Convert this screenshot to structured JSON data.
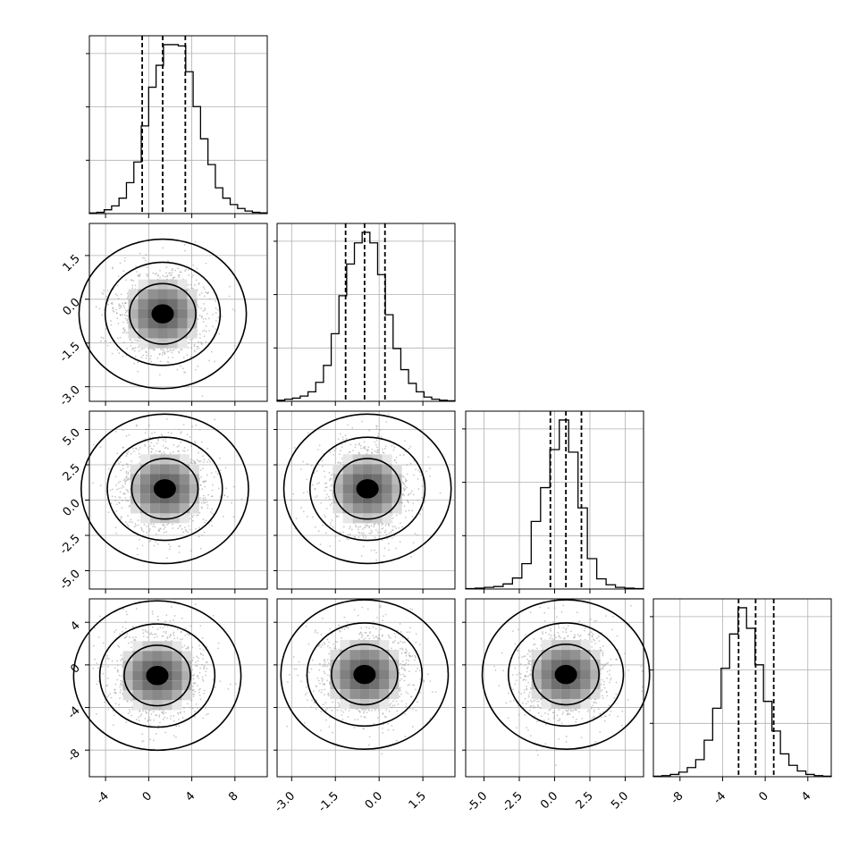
{
  "chart_data": {
    "type": "corner",
    "parameters": [
      {
        "range": [
          -5.5,
          11.0
        ],
        "ticks": [
          "-4",
          "0",
          "4",
          "8"
        ],
        "quantiles": [
          -0.6,
          1.3,
          3.4
        ],
        "hist": [
          0.5,
          1.0,
          3,
          6,
          12,
          24,
          40,
          68,
          98,
          115,
          131,
          131,
          130,
          110,
          83,
          58,
          38,
          20,
          12,
          7,
          4,
          2,
          1,
          0.6
        ]
      },
      {
        "range": [
          -3.5,
          2.6
        ],
        "ticks": [
          "-3.0",
          "-1.5",
          "0.0",
          "1.5"
        ],
        "quantiles": [
          -1.15,
          -0.5,
          0.2
        ],
        "hist": [
          1,
          2,
          3,
          5,
          9,
          18,
          34,
          64,
          100,
          130,
          150,
          160,
          150,
          120,
          82,
          50,
          30,
          17,
          9,
          4,
          2,
          1,
          0.5
        ]
      },
      {
        "range": [
          -6.3,
          6.3
        ],
        "ticks": [
          "-5.0",
          "-2.5",
          "0.0",
          "2.5",
          "5.0"
        ],
        "quantiles": [
          -0.3,
          0.8,
          1.9
        ],
        "hist": [
          0.5,
          1,
          2,
          3,
          6,
          13,
          30,
          80,
          120,
          165,
          200,
          162,
          96,
          36,
          12,
          5,
          2,
          1,
          0.5
        ]
      },
      {
        "range": [
          -10.5,
          6.2
        ],
        "ticks": [
          "-8",
          "-4",
          "0",
          "4"
        ],
        "quantiles": [
          -2.5,
          -0.9,
          0.8
        ],
        "hist": [
          0.5,
          1,
          2,
          4,
          8,
          15,
          32,
          60,
          95,
          125,
          148,
          130,
          98,
          66,
          40,
          20,
          10,
          5,
          2,
          1,
          0.5
        ]
      }
    ],
    "y_ticks_rows": [
      [],
      [
        "1.5",
        "0.0",
        "-1.5",
        "-3.0"
      ],
      [
        "5.0",
        "2.5",
        "0.0",
        "-2.5",
        "-5.0"
      ],
      [
        "4",
        "0",
        "-4",
        "-8"
      ]
    ],
    "joint_centers": {
      "1-0": [
        1.3,
        -0.5
      ],
      "2-0": [
        1.5,
        0.8
      ],
      "2-1": [
        -0.4,
        0.8
      ],
      "3-0": [
        0.8,
        -1.0
      ],
      "3-1": [
        -0.5,
        -0.9
      ],
      "3-2": [
        0.8,
        -0.9
      ]
    },
    "grid": true
  }
}
